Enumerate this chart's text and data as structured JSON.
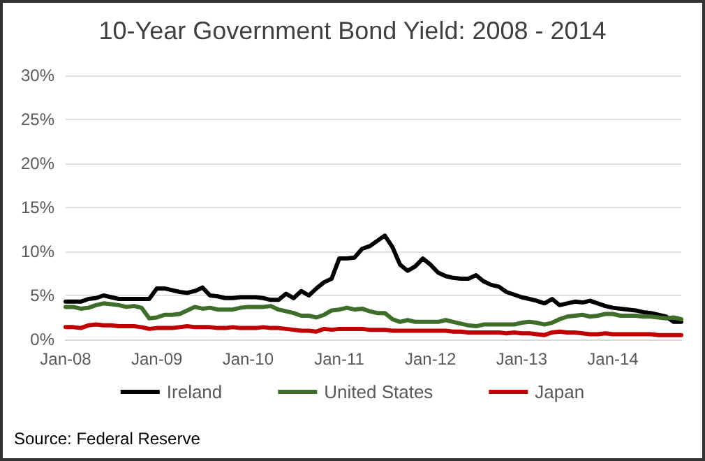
{
  "chart_data": {
    "type": "line",
    "title": "10-Year Government Bond Yield: 2008 - 2014",
    "categories": [
      "Jan-08",
      null,
      null,
      null,
      null,
      null,
      null,
      null,
      null,
      null,
      null,
      null,
      "Jan-09",
      null,
      null,
      null,
      null,
      null,
      null,
      null,
      null,
      null,
      null,
      null,
      "Jan-10",
      null,
      null,
      null,
      null,
      null,
      null,
      null,
      null,
      null,
      null,
      null,
      "Jan-11",
      null,
      null,
      null,
      null,
      null,
      null,
      null,
      null,
      null,
      null,
      null,
      "Jan-12",
      null,
      null,
      null,
      null,
      null,
      null,
      null,
      null,
      null,
      null,
      null,
      "Jan-13",
      null,
      null,
      null,
      null,
      null,
      null,
      null,
      null,
      null,
      null,
      null,
      "Jan-14",
      null,
      null,
      null,
      null,
      null,
      null,
      null,
      null,
      null
    ],
    "series": [
      {
        "name": "Ireland",
        "color": "#000000",
        "values": [
          4.3,
          4.3,
          4.3,
          4.6,
          4.7,
          5.0,
          4.8,
          4.6,
          4.6,
          4.6,
          4.6,
          4.6,
          5.8,
          5.8,
          5.6,
          5.4,
          5.3,
          5.5,
          5.9,
          5.0,
          4.9,
          4.7,
          4.7,
          4.8,
          4.8,
          4.8,
          4.7,
          4.5,
          4.5,
          5.2,
          4.7,
          5.5,
          5.0,
          5.8,
          6.5,
          6.9,
          9.2,
          9.2,
          9.3,
          10.3,
          10.6,
          11.2,
          11.8,
          10.5,
          8.5,
          7.8,
          8.3,
          9.2,
          8.5,
          7.6,
          7.2,
          7.0,
          6.9,
          6.9,
          7.3,
          6.6,
          6.2,
          6.0,
          5.4,
          5.1,
          4.8,
          4.6,
          4.4,
          4.1,
          4.6,
          3.9,
          4.1,
          4.3,
          4.2,
          4.4,
          4.1,
          3.8,
          3.6,
          3.5,
          3.4,
          3.3,
          3.1,
          3.0,
          2.8,
          2.6,
          2.0,
          2.0
        ]
      },
      {
        "name": "United States",
        "color": "#3f6e2a",
        "values": [
          3.7,
          3.7,
          3.5,
          3.6,
          3.9,
          4.1,
          4.0,
          3.9,
          3.7,
          3.8,
          3.6,
          2.4,
          2.5,
          2.8,
          2.8,
          2.9,
          3.3,
          3.7,
          3.5,
          3.6,
          3.4,
          3.4,
          3.4,
          3.6,
          3.7,
          3.7,
          3.7,
          3.8,
          3.4,
          3.2,
          3.0,
          2.7,
          2.7,
          2.5,
          2.8,
          3.3,
          3.4,
          3.6,
          3.4,
          3.5,
          3.2,
          3.0,
          3.0,
          2.3,
          2.0,
          2.2,
          2.0,
          2.0,
          2.0,
          2.0,
          2.2,
          2.0,
          1.8,
          1.6,
          1.5,
          1.7,
          1.7,
          1.7,
          1.7,
          1.7,
          1.9,
          2.0,
          1.9,
          1.7,
          1.9,
          2.3,
          2.6,
          2.7,
          2.8,
          2.6,
          2.7,
          2.9,
          2.9,
          2.7,
          2.7,
          2.7,
          2.6,
          2.6,
          2.5,
          2.4,
          2.5,
          2.3
        ]
      },
      {
        "name": "Japan",
        "color": "#c00000",
        "values": [
          1.4,
          1.4,
          1.3,
          1.6,
          1.7,
          1.6,
          1.6,
          1.5,
          1.5,
          1.5,
          1.4,
          1.2,
          1.3,
          1.3,
          1.3,
          1.4,
          1.5,
          1.4,
          1.4,
          1.4,
          1.3,
          1.3,
          1.4,
          1.3,
          1.3,
          1.3,
          1.4,
          1.3,
          1.3,
          1.2,
          1.1,
          1.0,
          1.0,
          0.9,
          1.2,
          1.1,
          1.2,
          1.2,
          1.2,
          1.2,
          1.1,
          1.1,
          1.1,
          1.0,
          1.0,
          1.0,
          1.0,
          1.0,
          1.0,
          1.0,
          1.0,
          0.9,
          0.9,
          0.8,
          0.8,
          0.8,
          0.8,
          0.8,
          0.7,
          0.8,
          0.7,
          0.7,
          0.6,
          0.5,
          0.8,
          0.9,
          0.8,
          0.8,
          0.7,
          0.6,
          0.6,
          0.7,
          0.6,
          0.6,
          0.6,
          0.6,
          0.6,
          0.6,
          0.5,
          0.5,
          0.5,
          0.5
        ]
      }
    ],
    "ylim": [
      0,
      30
    ],
    "yticks": [
      {
        "value": 0,
        "label": "0%"
      },
      {
        "value": 5,
        "label": "5%"
      },
      {
        "value": 10,
        "label": "10%"
      },
      {
        "value": 15,
        "label": "15%"
      },
      {
        "value": 20,
        "label": "20%"
      },
      {
        "value": 25,
        "label": "25%"
      },
      {
        "value": 30,
        "label": "30%"
      }
    ],
    "grid": "y",
    "legend": "bottom",
    "marker": "none",
    "line_style": "solid",
    "annotations": [
      "Source: Federal Reserve"
    ]
  }
}
